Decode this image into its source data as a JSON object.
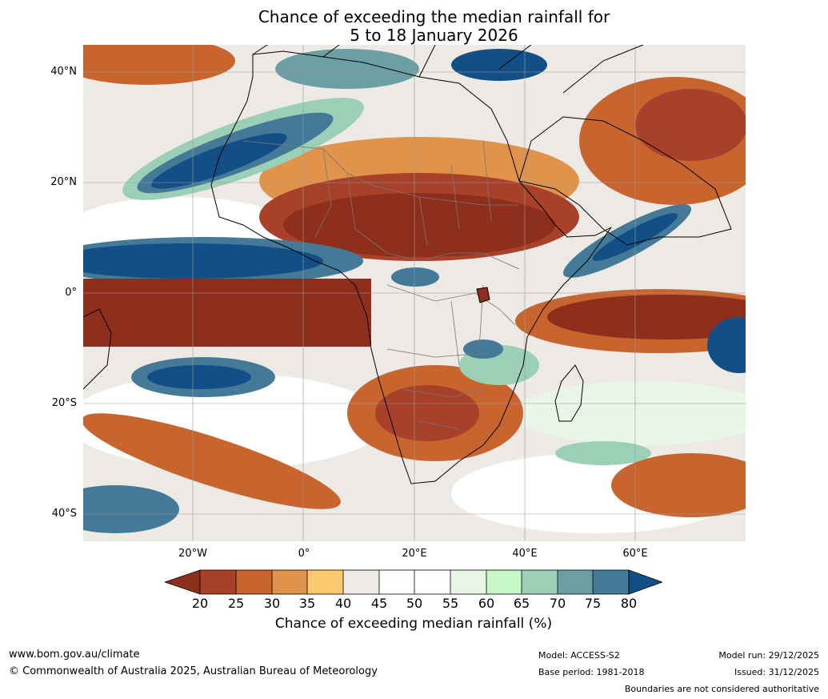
{
  "title": {
    "line1": "Chance of exceeding the median rainfall for",
    "line2": "5 to 18 January 2026"
  },
  "axes": {
    "lat_labels": [
      "40°N",
      "20°N",
      "0°",
      "20°S",
      "40°S"
    ],
    "lon_labels": [
      "20°W",
      "0°",
      "20°E",
      "40°E",
      "60°E"
    ]
  },
  "colorbar": {
    "title": "Chance of exceeding median rainfall (%)",
    "ticks": [
      "20",
      "25",
      "30",
      "35",
      "40",
      "45",
      "50",
      "55",
      "60",
      "65",
      "70",
      "75",
      "80"
    ],
    "colors": {
      "below_20": "#8e2f1d",
      "b20_25": "#a8412a",
      "b25_30": "#c8652f",
      "b30_35": "#e0934a",
      "b35_40": "#fcc96f",
      "b40_45": "#edeae5",
      "b45_50": "#ffffff",
      "b50_55": "#ffffff",
      "b55_60": "#e8f6e6",
      "b60_65": "#c8f7c8",
      "b65_70": "#9bcfb6",
      "b70_75": "#6c9fa3",
      "b75_80": "#447a98",
      "above_80": "#134f87"
    }
  },
  "footer": {
    "website": "www.bom.gov.au/climate",
    "copyright": "© Commonwealth of Australia 2025, Australian Bureau of Meteorology",
    "model": "Model: ACCESS-S2",
    "base_period": "Base period: 1981-2018",
    "model_run": "Model run: 29/12/2025",
    "issued": "Issued: 31/12/2025",
    "disclaimer": "Boundaries are not considered authoritative"
  }
}
